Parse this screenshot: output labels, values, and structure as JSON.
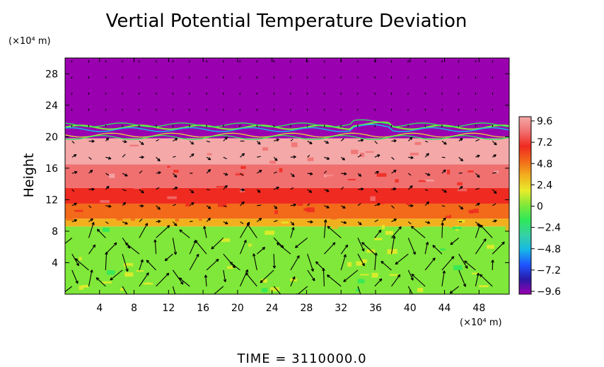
{
  "chart_data": {
    "type": "heatmap",
    "title": "Vertial Potential Temperature Deviation",
    "ylabel": "Height",
    "y_unit_label": "(×10⁴ m)",
    "x_unit_label": "(×10⁴ m)",
    "footer": "TIME  =  3110000.0",
    "xlim": [
      0,
      51.5
    ],
    "ylim": [
      0,
      30
    ],
    "x_ticks": [
      4,
      8,
      12,
      16,
      20,
      24,
      28,
      32,
      36,
      40,
      44,
      48
    ],
    "y_ticks": [
      4,
      8,
      12,
      16,
      20,
      24,
      28
    ],
    "x_tick_labels": [
      "4",
      "8",
      "12",
      "16",
      "20",
      "24",
      "28",
      "32",
      "36",
      "40",
      "44",
      "48"
    ],
    "y_tick_labels": [
      "4",
      "8",
      "12",
      "16",
      "20",
      "24",
      "28"
    ],
    "colorbar": {
      "range": [
        -9.6,
        9.6
      ],
      "tick_labels": [
        "9.6",
        "7.2",
        "4.8",
        "2.4",
        "0",
        "−2.4",
        "−4.8",
        "−7.2",
        "−9.6"
      ],
      "colors": [
        "#9b00b0",
        "#2a1aa8",
        "#1f55ff",
        "#17b8e6",
        "#37d1a4",
        "#2ee85a",
        "#7fe83a",
        "#e8ec2a",
        "#f2b01e",
        "#f26a1a",
        "#ef2a20",
        "#f07070",
        "#f4a8a8"
      ]
    },
    "bands": [
      {
        "y_from": 0,
        "y_to": 8.6,
        "value": 0.3
      },
      {
        "y_from": 8.6,
        "y_to": 9.6,
        "value": 2.8
      },
      {
        "y_from": 9.6,
        "y_to": 11.5,
        "value": 5.2
      },
      {
        "y_from": 11.5,
        "y_to": 13.5,
        "value": 7.0
      },
      {
        "y_from": 13.5,
        "y_to": 16.5,
        "value": 7.8
      },
      {
        "y_from": 16.5,
        "y_to": 19.8,
        "value": 9.4
      },
      {
        "y_from": 19.8,
        "y_to": 30,
        "value": -9.6
      }
    ],
    "vectors": "wind arrows on a regular grid; strong mostly vertical arrows below 8, weak mostly horizontal arrows above"
  }
}
